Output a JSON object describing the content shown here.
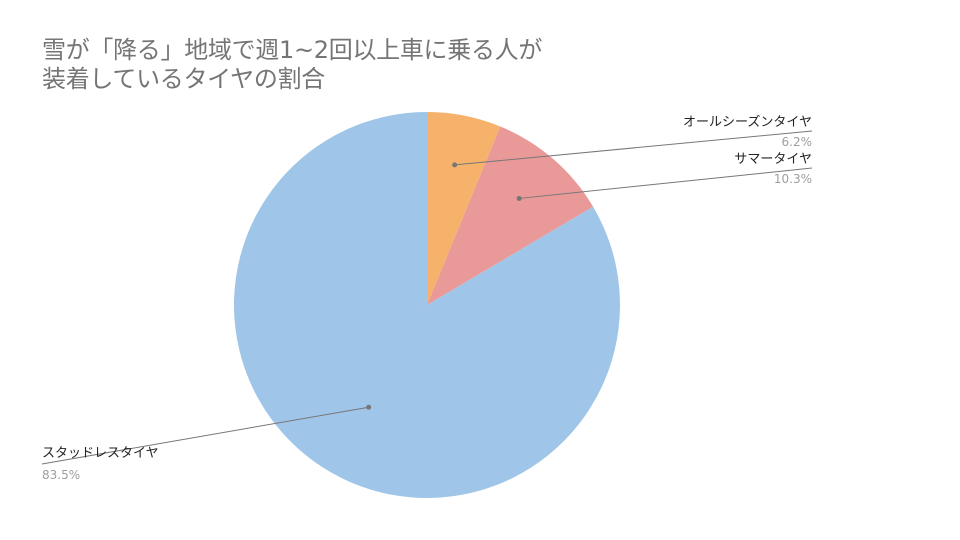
{
  "chart_data": {
    "type": "pie",
    "title_lines": [
      "雪が「降る」地域で週1~2回以上車に乗る人が",
      "装着しているタイヤの割合"
    ],
    "slices": [
      {
        "label": "オールシーズンタイヤ",
        "value": 6.2,
        "value_label": "6.2%",
        "color": "#f6b26b"
      },
      {
        "label": "サマータイヤ",
        "value": 10.3,
        "value_label": "10.3%",
        "color": "#ea9999"
      },
      {
        "label": "スタッドレスタイヤ",
        "value": 83.5,
        "value_label": "83.5%",
        "color": "#9fc5e8"
      }
    ],
    "start_angle": "12 o'clock",
    "direction": "clockwise",
    "legend": "none",
    "label_style": "leader lines with name and percentage",
    "label_line_color": "#777777"
  }
}
